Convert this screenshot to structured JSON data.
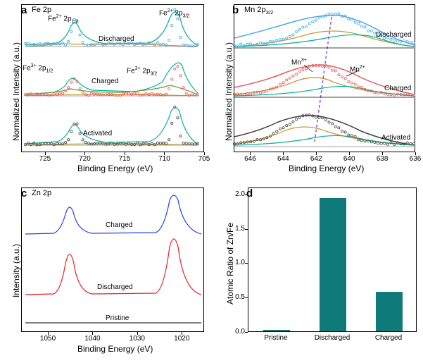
{
  "panel_a": {
    "letter": "a",
    "title": "Fe 2p",
    "ylabel": "Normalized Intensity (a.u.)",
    "xlabel": "Binding Energy (eV)",
    "xticks": [
      725,
      720,
      715,
      710,
      705
    ],
    "xlim": [
      728,
      705
    ],
    "annotations": [
      {
        "text": "Fe²⁺ 2p₁/₂",
        "x": 0.2
      },
      {
        "text": "Fe²⁺ 2p₃/₂",
        "x": 0.78
      },
      {
        "text": "Fe³⁺ 2p₁/₂",
        "x": 0.05
      },
      {
        "text": "Fe³⁺ 2p₃/₂",
        "x": 0.66
      }
    ],
    "traces": [
      "Discharged",
      "Charged",
      "Activated"
    ],
    "colors": {
      "discharged_data": "#4aa8e8",
      "charged_data": "#e85a5a",
      "activated_data": "#444444",
      "fit1": "#00b09a",
      "fit2": "#c59b2e",
      "fit3": "#6a9a3a",
      "baseline": "#888888"
    }
  },
  "panel_b": {
    "letter": "b",
    "title": "Mn 2p₃/₂",
    "ylabel": "Normalized Intensity (a.u.)",
    "xlabel": "Binding Energy (eV)",
    "xticks": [
      646,
      644,
      642,
      640,
      638,
      636
    ],
    "xlim": [
      647,
      636
    ],
    "annotations": [
      {
        "text": "Mn³⁺"
      },
      {
        "text": "Mn²⁺"
      }
    ],
    "traces": [
      "Discharged",
      "Charged",
      "Activated"
    ],
    "colors": {
      "discharged_data": "#4aa8e8",
      "charged_data": "#e85a5a",
      "activated_data": "#444444",
      "fit1": "#00b09a",
      "fit2": "#c59b2e",
      "fit3": "#d4821e",
      "baseline": "#888888",
      "dash": "#9b4fc9"
    }
  },
  "panel_c": {
    "letter": "c",
    "title": "Zn 2p",
    "ylabel": "Intensity (a.u.)",
    "xlabel": "Binding Energy (eV)",
    "xticks": [
      1050,
      1040,
      1030,
      1020
    ],
    "xlim": [
      1056,
      1015
    ],
    "traces": [
      "Charged",
      "Discharged",
      "Pristine"
    ],
    "colors": {
      "charged": "#2040e8",
      "discharged": "#e82020",
      "pristine": "#000000"
    }
  },
  "panel_d": {
    "letter": "d",
    "ylabel": "Atomic Ratio of Zn/Fe",
    "yticks": [
      0.0,
      0.5,
      1.0,
      1.5,
      2.0
    ],
    "ylim": [
      0,
      2.1
    ],
    "categories": [
      "Pristine",
      "Discharged",
      "Charged"
    ],
    "values": [
      0.02,
      1.94,
      0.57
    ],
    "bar_color": "#0e7a7a",
    "bar_width": 0.48
  }
}
